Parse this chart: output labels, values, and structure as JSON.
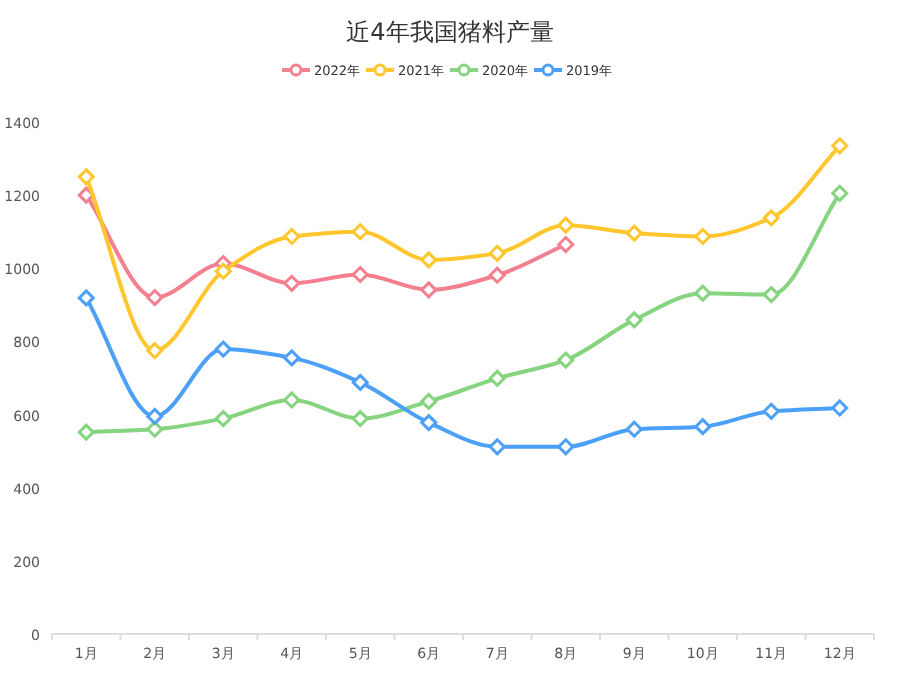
{
  "chart_data": {
    "type": "line",
    "title": "近4年我国猪料产量",
    "categories": [
      "1月",
      "2月",
      "3月",
      "4月",
      "5月",
      "6月",
      "7月",
      "8月",
      "9月",
      "10月",
      "11月",
      "12月"
    ],
    "series": [
      {
        "name": "2022年",
        "color": "#f4808f",
        "values": [
          1200,
          920,
          1013,
          959,
          983,
          941,
          981,
          1065,
          null,
          null,
          null,
          null
        ]
      },
      {
        "name": "2021年",
        "color": "#ffc62e",
        "values": [
          1250,
          775,
          992,
          1087,
          1100,
          1023,
          1041,
          1118,
          1096,
          1087,
          1138,
          1335
        ]
      },
      {
        "name": "2020年",
        "color": "#86d480",
        "values": [
          552,
          560,
          589,
          640,
          589,
          636,
          699,
          749,
          859,
          932,
          928,
          1205
        ]
      },
      {
        "name": "2019年",
        "color": "#4da0f7",
        "values": [
          919,
          595,
          779,
          755,
          688,
          578,
          512,
          512,
          560,
          567,
          609,
          618
        ]
      }
    ],
    "ylim": [
      0,
      1400
    ],
    "yticks": [
      0,
      200,
      400,
      600,
      800,
      1000,
      1200,
      1400
    ],
    "legend": "top",
    "marker": "diamond",
    "grid": false
  }
}
